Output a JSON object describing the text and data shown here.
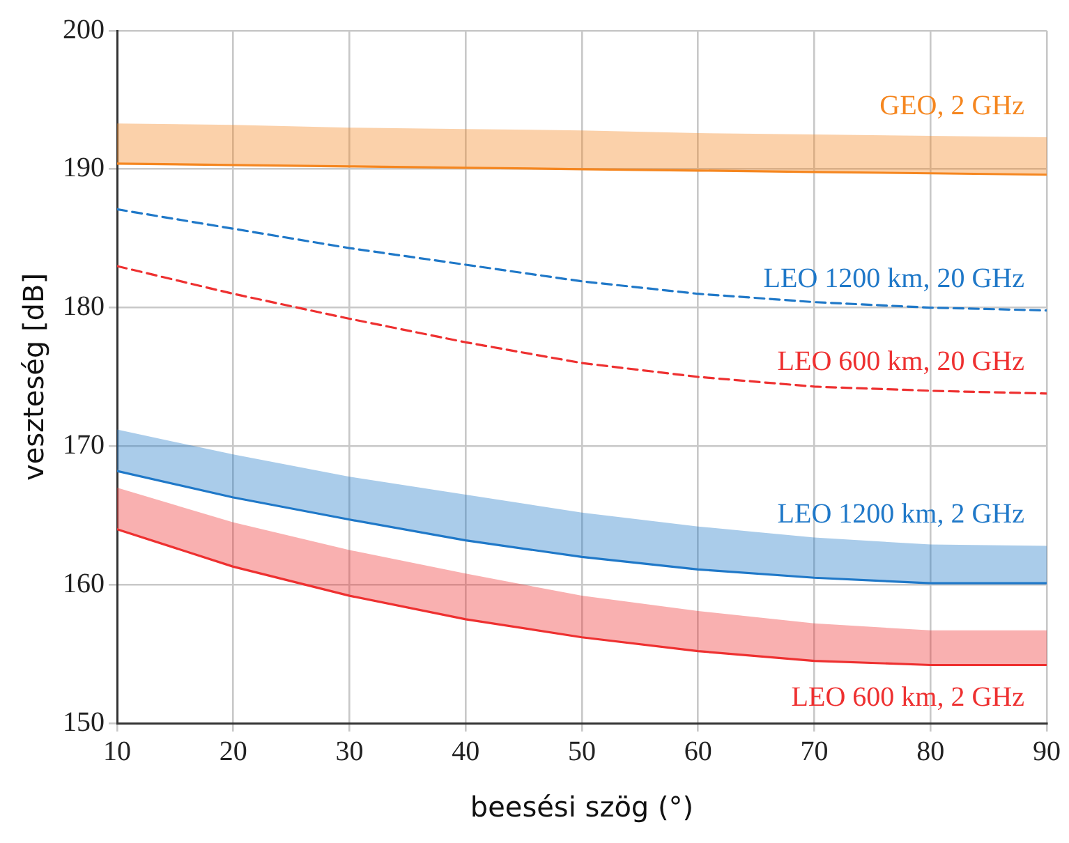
{
  "chart_data": {
    "type": "line",
    "xlabel": "beesési szög (°)",
    "ylabel": "veszteség [dB]",
    "x": [
      10,
      20,
      30,
      40,
      50,
      60,
      70,
      80,
      90
    ],
    "xlim": [
      10,
      90
    ],
    "xticks": [
      10,
      20,
      30,
      40,
      50,
      60,
      70,
      80,
      90
    ],
    "ylim": [
      150,
      200
    ],
    "yticks": [
      150,
      160,
      170,
      180,
      190,
      200
    ],
    "grid": true,
    "legend": false,
    "marker": "none",
    "series": [
      {
        "name": "GEO, 2 GHz",
        "color": "#f5861f",
        "line_style": "solid",
        "values": [
          190.4,
          190.3,
          190.2,
          190.1,
          190.0,
          189.9,
          189.8,
          189.7,
          189.6
        ],
        "lower": [
          190.4,
          190.3,
          190.2,
          190.1,
          190.0,
          189.9,
          189.8,
          189.7,
          189.6
        ],
        "upper": [
          193.3,
          193.2,
          193.0,
          192.9,
          192.8,
          192.6,
          192.5,
          192.4,
          192.3
        ]
      },
      {
        "name": "LEO 1200 km, 20 GHz",
        "color": "#1f78c8",
        "line_style": "dashed",
        "values": [
          187.1,
          185.7,
          184.3,
          183.1,
          181.9,
          181.0,
          180.4,
          180.0,
          179.8
        ]
      },
      {
        "name": "LEO 600 km, 20 GHz",
        "color": "#ee3030",
        "line_style": "dashed",
        "values": [
          183.0,
          181.0,
          179.2,
          177.5,
          176.0,
          175.0,
          174.3,
          174.0,
          173.8
        ]
      },
      {
        "name": "LEO 1200 km, 2 GHz",
        "color": "#1f78c8",
        "line_style": "solid",
        "values": [
          168.2,
          166.3,
          164.7,
          163.2,
          162.0,
          161.1,
          160.5,
          160.1,
          160.1
        ],
        "lower": [
          168.2,
          166.3,
          164.7,
          163.2,
          162.0,
          161.1,
          160.5,
          160.1,
          160.1
        ],
        "upper": [
          171.2,
          169.4,
          167.8,
          166.5,
          165.2,
          164.2,
          163.4,
          162.9,
          162.8
        ]
      },
      {
        "name": "LEO 600 km, 2 GHz",
        "color": "#ee3030",
        "line_style": "solid",
        "values": [
          164.0,
          161.3,
          159.2,
          157.5,
          156.2,
          155.2,
          154.5,
          154.2,
          154.2
        ],
        "lower": [
          164.0,
          161.3,
          159.2,
          157.5,
          156.2,
          155.2,
          154.5,
          154.2,
          154.2
        ],
        "upper": [
          167.0,
          164.5,
          162.5,
          160.8,
          159.2,
          158.1,
          157.2,
          156.7,
          156.7
        ]
      }
    ]
  }
}
